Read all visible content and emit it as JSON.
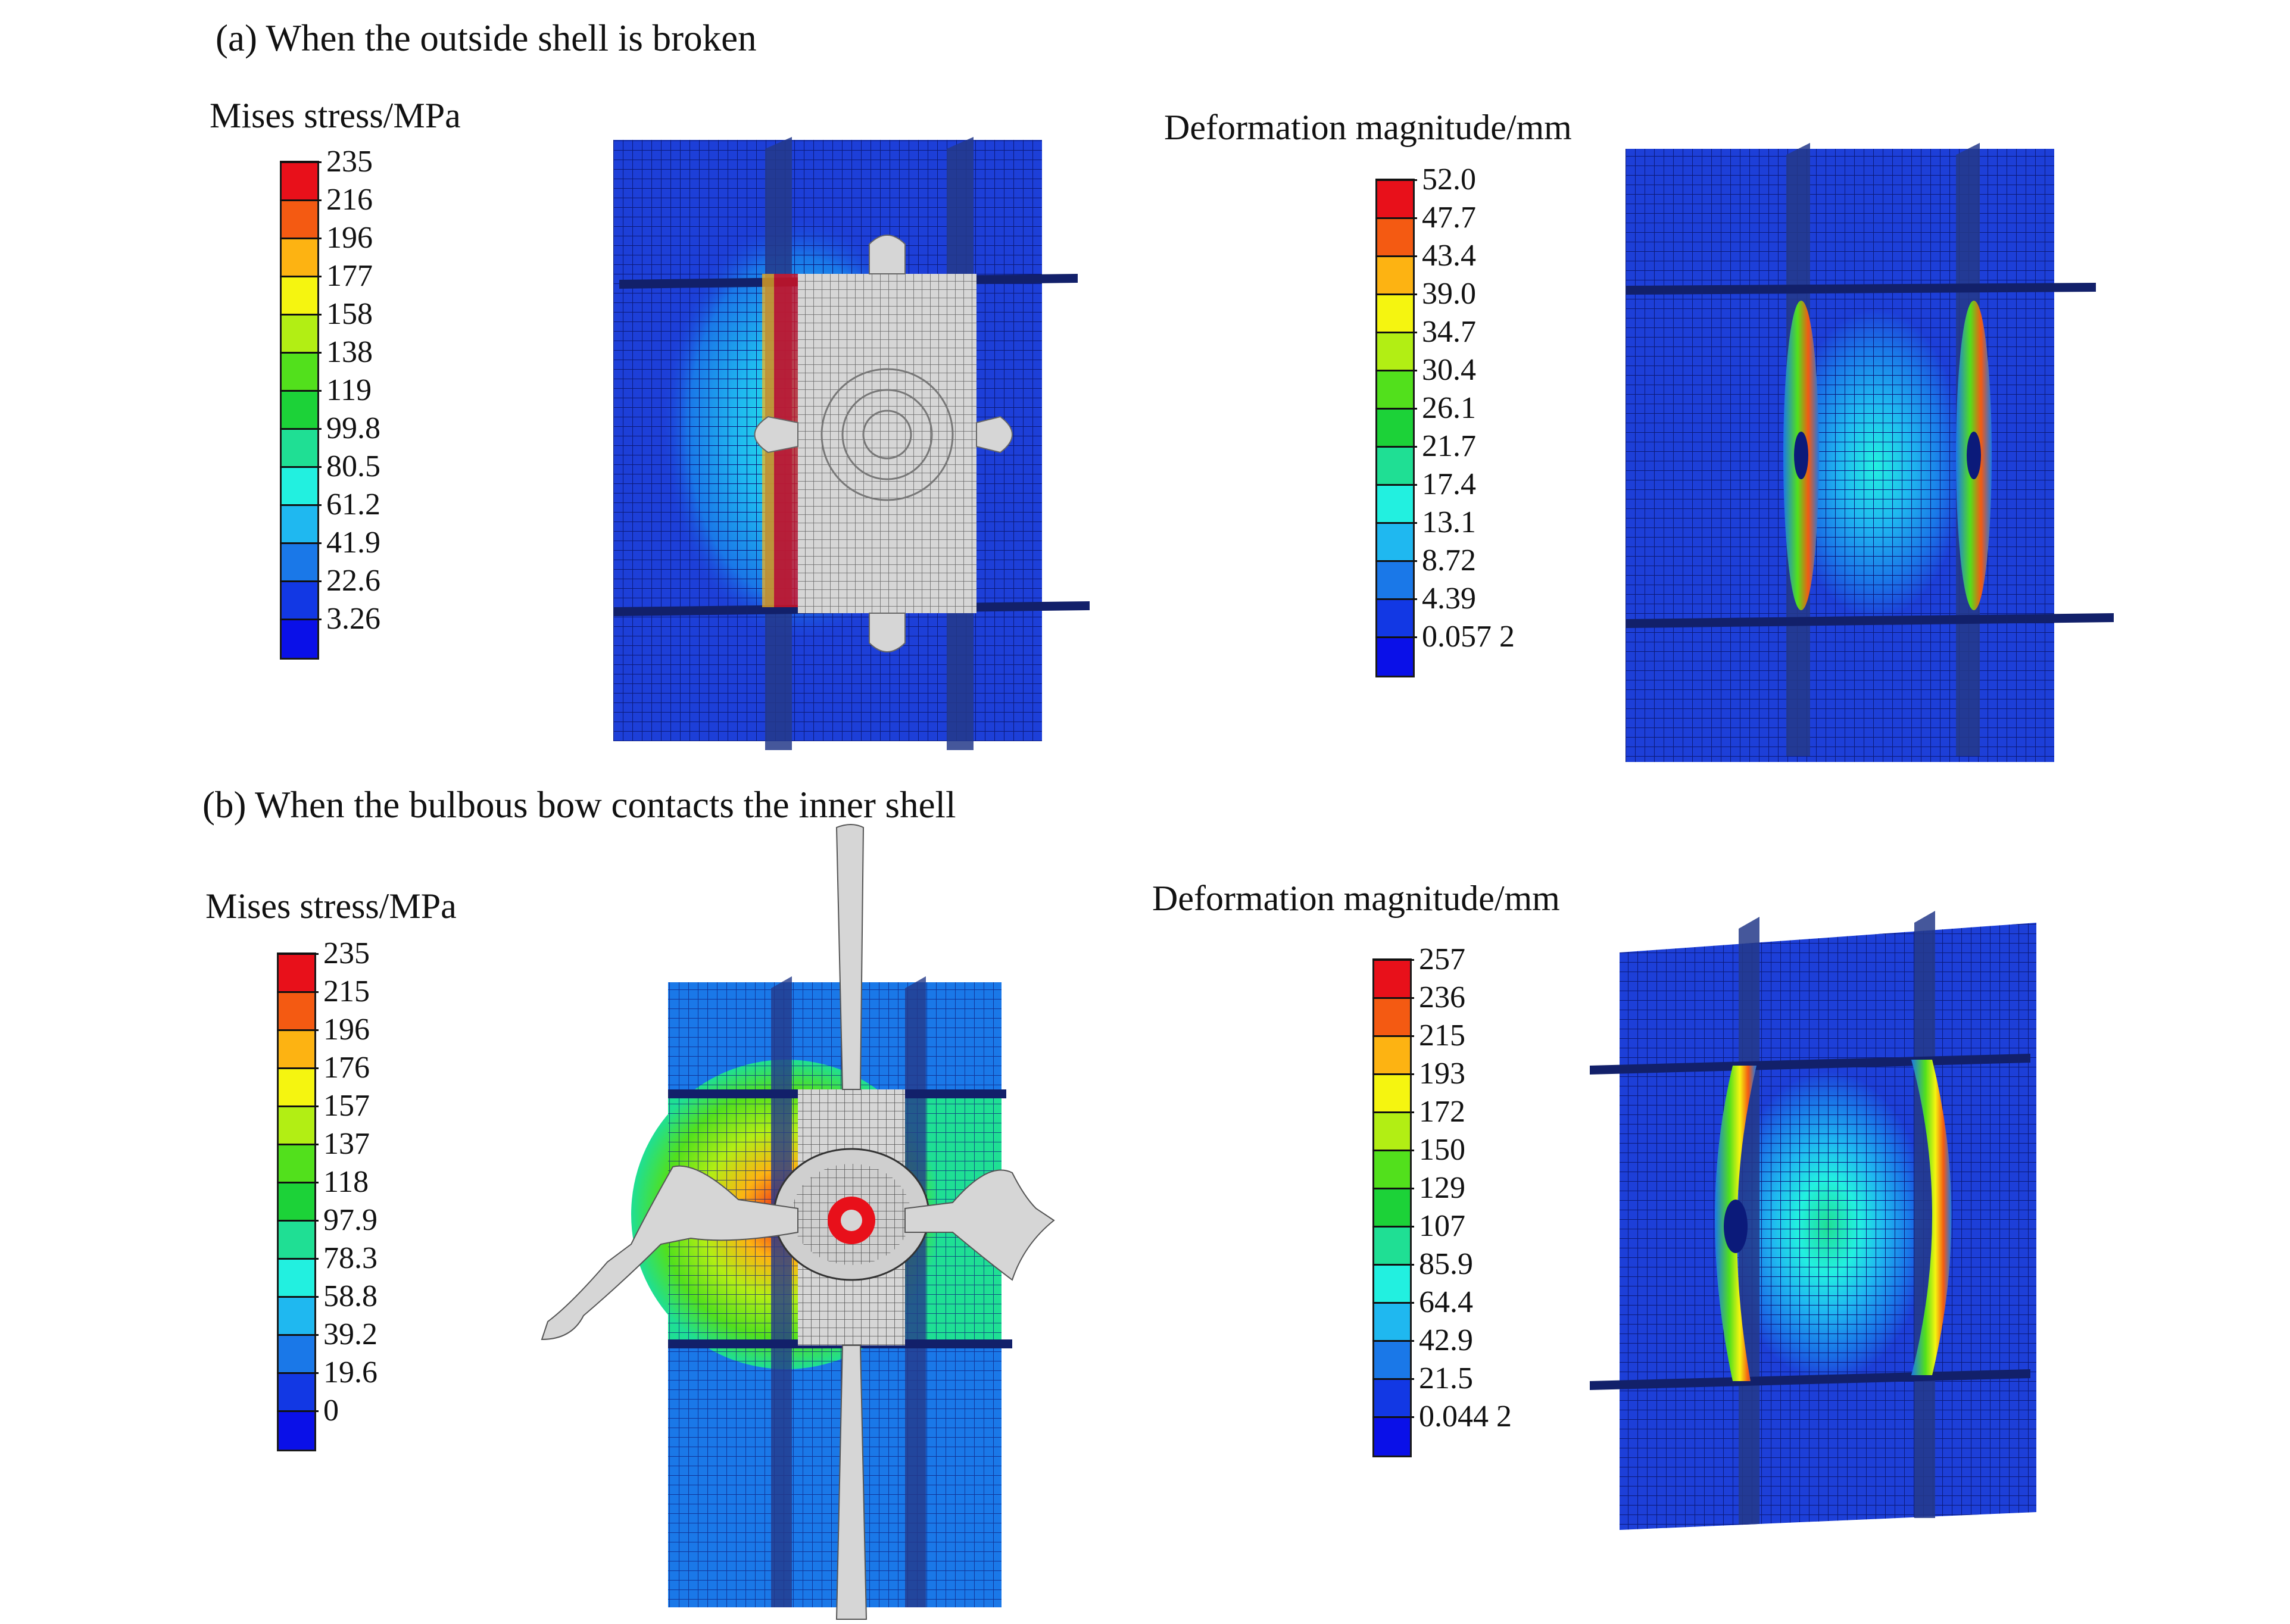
{
  "figure": {
    "panel_a": {
      "caption": "(a) When the outside shell is broken",
      "stress": {
        "title": "Mises stress/MPa",
        "ticks": [
          "235",
          "216",
          "196",
          "177",
          "158",
          "138",
          "119",
          "99.8",
          "80.5",
          "61.2",
          "41.9",
          "22.6",
          "3.26"
        ]
      },
      "deformation": {
        "title": "Deformation magnitude/mm",
        "ticks": [
          "52.0",
          "47.7",
          "43.4",
          "39.0",
          "34.7",
          "30.4",
          "26.1",
          "21.7",
          "17.4",
          "13.1",
          "8.72",
          "4.39",
          "0.057 2"
        ]
      }
    },
    "panel_b": {
      "caption": "(b) When the bulbous bow contacts the inner shell",
      "stress": {
        "title": "Mises stress/MPa",
        "ticks": [
          "235",
          "215",
          "196",
          "176",
          "157",
          "137",
          "118",
          "97.9",
          "78.3",
          "58.8",
          "39.2",
          "19.6",
          "0"
        ]
      },
      "deformation": {
        "title": "Deformation magnitude/mm",
        "ticks": [
          "257",
          "236",
          "215",
          "193",
          "172",
          "150",
          "129",
          "107",
          "85.9",
          "64.4",
          "42.9",
          "21.5",
          "0.044 2"
        ]
      }
    }
  },
  "palette": [
    "#e8101a",
    "#f45a12",
    "#fdb312",
    "#f5f510",
    "#b2ee14",
    "#52e01c",
    "#1cd238",
    "#1fdf94",
    "#22f0e0",
    "#1fb8f0",
    "#1a78e8",
    "#1238e4",
    "#0a10e8"
  ],
  "colors": {
    "plate": "#1d3fd8",
    "mesh": "#0b1a7a",
    "bow": "#d6d6d6",
    "bow_mesh": "#555555",
    "web": "#243a8a"
  }
}
